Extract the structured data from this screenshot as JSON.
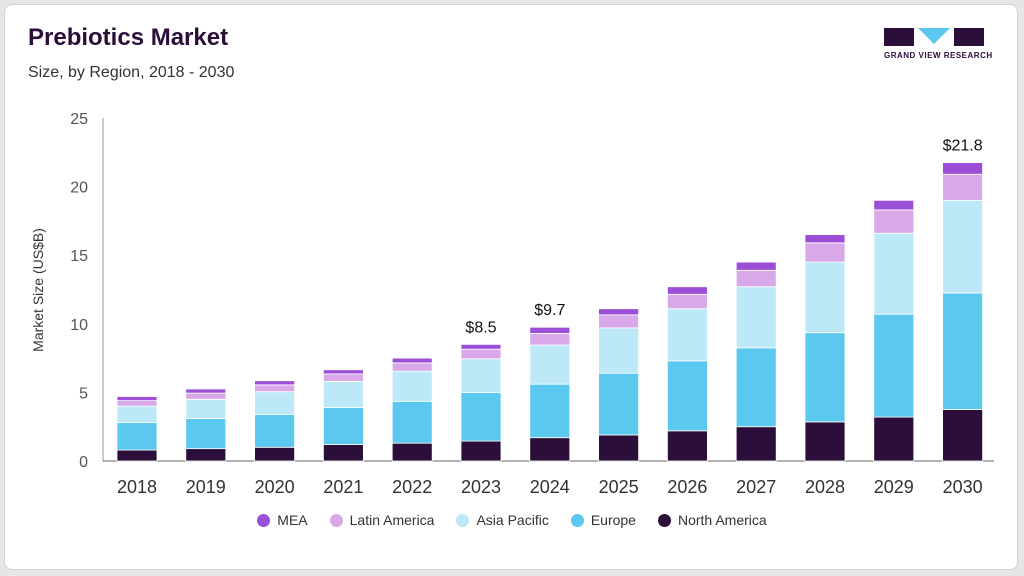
{
  "header": {
    "title": "Prebiotics Market",
    "subtitle": "Size, by Region, 2018 - 2030",
    "logo_text": "GRAND VIEW RESEARCH"
  },
  "colors": {
    "North America": "#2b0f3a",
    "Europe": "#5bc8f0",
    "Asia Pacific": "#bde8f8",
    "Latin America": "#d9a8e8",
    "MEA": "#9b4fd6"
  },
  "chart_data": {
    "type": "bar",
    "stacked": true,
    "title": "Prebiotics Market",
    "subtitle": "Size, by Region, 2018 - 2030",
    "xlabel": "",
    "ylabel": "Market Size (US$B)",
    "ylim": [
      0,
      25
    ],
    "yticks": [
      0,
      5,
      10,
      15,
      20,
      25
    ],
    "categories": [
      "2018",
      "2019",
      "2020",
      "2021",
      "2022",
      "2023",
      "2024",
      "2025",
      "2026",
      "2027",
      "2028",
      "2029",
      "2030"
    ],
    "series": [
      {
        "name": "North America",
        "values": [
          0.8,
          0.9,
          1.0,
          1.2,
          1.3,
          1.45,
          1.7,
          1.9,
          2.2,
          2.5,
          2.85,
          3.2,
          3.75
        ]
      },
      {
        "name": "Europe",
        "values": [
          2.0,
          2.2,
          2.4,
          2.7,
          3.05,
          3.55,
          3.9,
          4.5,
          5.1,
          5.75,
          6.5,
          7.5,
          8.5
        ]
      },
      {
        "name": "Asia Pacific",
        "values": [
          1.2,
          1.4,
          1.65,
          1.9,
          2.2,
          2.45,
          2.85,
          3.3,
          3.8,
          4.45,
          5.15,
          5.9,
          6.75
        ]
      },
      {
        "name": "Latin America",
        "values": [
          0.4,
          0.45,
          0.5,
          0.55,
          0.6,
          0.7,
          0.85,
          0.95,
          1.05,
          1.2,
          1.4,
          1.7,
          1.9
        ]
      },
      {
        "name": "MEA",
        "values": [
          0.3,
          0.3,
          0.3,
          0.3,
          0.35,
          0.35,
          0.45,
          0.45,
          0.55,
          0.6,
          0.6,
          0.7,
          0.85
        ]
      }
    ],
    "data_labels": {
      "2023": "$8.5",
      "2024": "$9.7",
      "2030": "$21.8"
    },
    "legend": [
      "MEA",
      "Latin America",
      "Asia Pacific",
      "Europe",
      "North America"
    ],
    "legend_position": "bottom"
  }
}
